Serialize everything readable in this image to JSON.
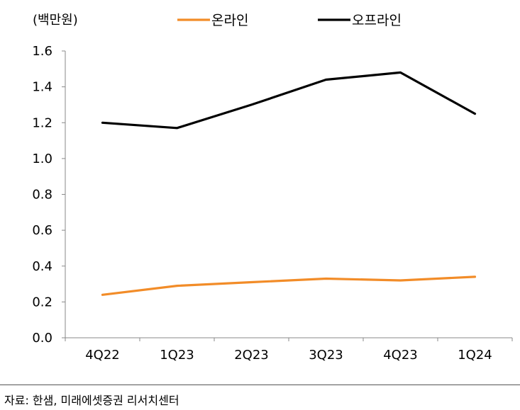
{
  "chart_data": {
    "type": "line",
    "unit_label": "(백만원)",
    "categories": [
      "4Q22",
      "1Q23",
      "2Q23",
      "3Q23",
      "4Q23",
      "1Q24"
    ],
    "series": [
      {
        "name": "온라인",
        "color": "#F28C28",
        "values": [
          0.24,
          0.29,
          0.31,
          0.33,
          0.32,
          0.34
        ]
      },
      {
        "name": "오프라인",
        "color": "#000000",
        "values": [
          1.2,
          1.17,
          1.3,
          1.44,
          1.48,
          1.25
        ]
      }
    ],
    "ylim": [
      0.0,
      1.6
    ],
    "yticks": [
      "0.0",
      "0.2",
      "0.4",
      "0.6",
      "0.8",
      "1.0",
      "1.2",
      "1.4",
      "1.6"
    ],
    "grid": false,
    "legend_position": "top-center"
  },
  "source_text": "자료: 한샘, 미래에셋증권 리서치센터"
}
